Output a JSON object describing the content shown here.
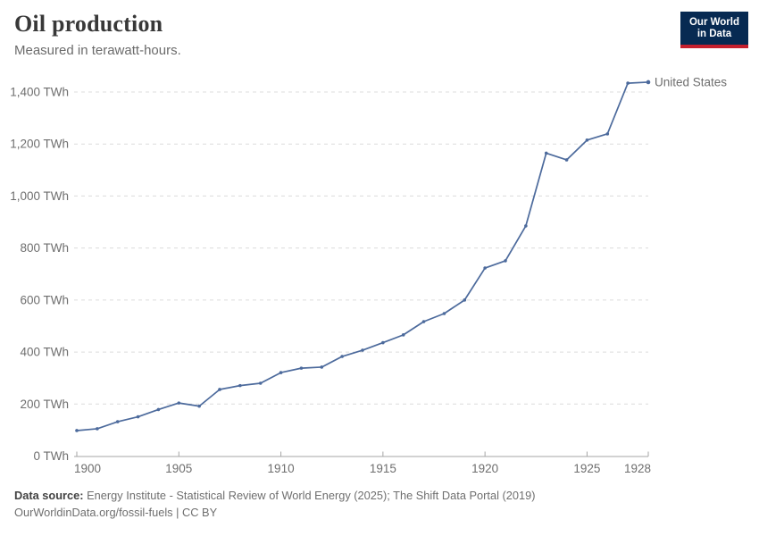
{
  "header": {
    "title": "Oil production",
    "subtitle": "Measured in terawatt-hours."
  },
  "logo": {
    "line1": "Our World",
    "line2": "in Data",
    "bg_color": "#072A52",
    "accent_color": "#C5202E"
  },
  "chart_data": {
    "type": "line",
    "title": "Oil production",
    "xlabel": "",
    "ylabel": "TWh",
    "xlim": [
      1900,
      1928
    ],
    "ylim": [
      0,
      1400
    ],
    "grid": "horizontal-dashed",
    "legend_position": "line-end-label",
    "x": [
      1900,
      1901,
      1902,
      1903,
      1904,
      1905,
      1906,
      1907,
      1908,
      1909,
      1910,
      1911,
      1912,
      1913,
      1914,
      1915,
      1916,
      1917,
      1918,
      1919,
      1920,
      1921,
      1922,
      1923,
      1924,
      1925,
      1926,
      1927,
      1928
    ],
    "series": [
      {
        "name": "United States",
        "color": "#4C6A9C",
        "values": [
          98,
          105,
          132,
          151,
          179,
          204,
          192,
          256,
          271,
          280,
          321,
          338,
          342,
          383,
          407,
          436,
          466,
          517,
          548,
          600,
          723,
          751,
          885,
          1165,
          1139,
          1215,
          1239,
          1434,
          1438
        ]
      }
    ],
    "y_ticks": [
      {
        "v": 0,
        "label": "0 TWh"
      },
      {
        "v": 200,
        "label": "200 TWh"
      },
      {
        "v": 400,
        "label": "400 TWh"
      },
      {
        "v": 600,
        "label": "600 TWh"
      },
      {
        "v": 800,
        "label": "800 TWh"
      },
      {
        "v": 1000,
        "label": "1,000 TWh"
      },
      {
        "v": 1200,
        "label": "1,200 TWh"
      },
      {
        "v": 1400,
        "label": "1,400 TWh"
      }
    ],
    "x_ticks": [
      {
        "v": 1900,
        "label": "1900"
      },
      {
        "v": 1905,
        "label": "1905"
      },
      {
        "v": 1910,
        "label": "1910"
      },
      {
        "v": 1915,
        "label": "1915"
      },
      {
        "v": 1920,
        "label": "1920"
      },
      {
        "v": 1925,
        "label": "1925"
      },
      {
        "v": 1928,
        "label": "1928"
      }
    ]
  },
  "theme": {
    "grid_color": "#DCDCDC",
    "axis_color": "#A6A6A6",
    "tick_text_color": "#6E6E6E"
  },
  "footer": {
    "source_label": "Data source:",
    "source_text": "Energy Institute - Statistical Review of World Energy (2025); The Shift Data Portal (2019)",
    "url": "OurWorldinData.org/fossil-fuels",
    "separator": " | ",
    "license": "CC BY"
  }
}
